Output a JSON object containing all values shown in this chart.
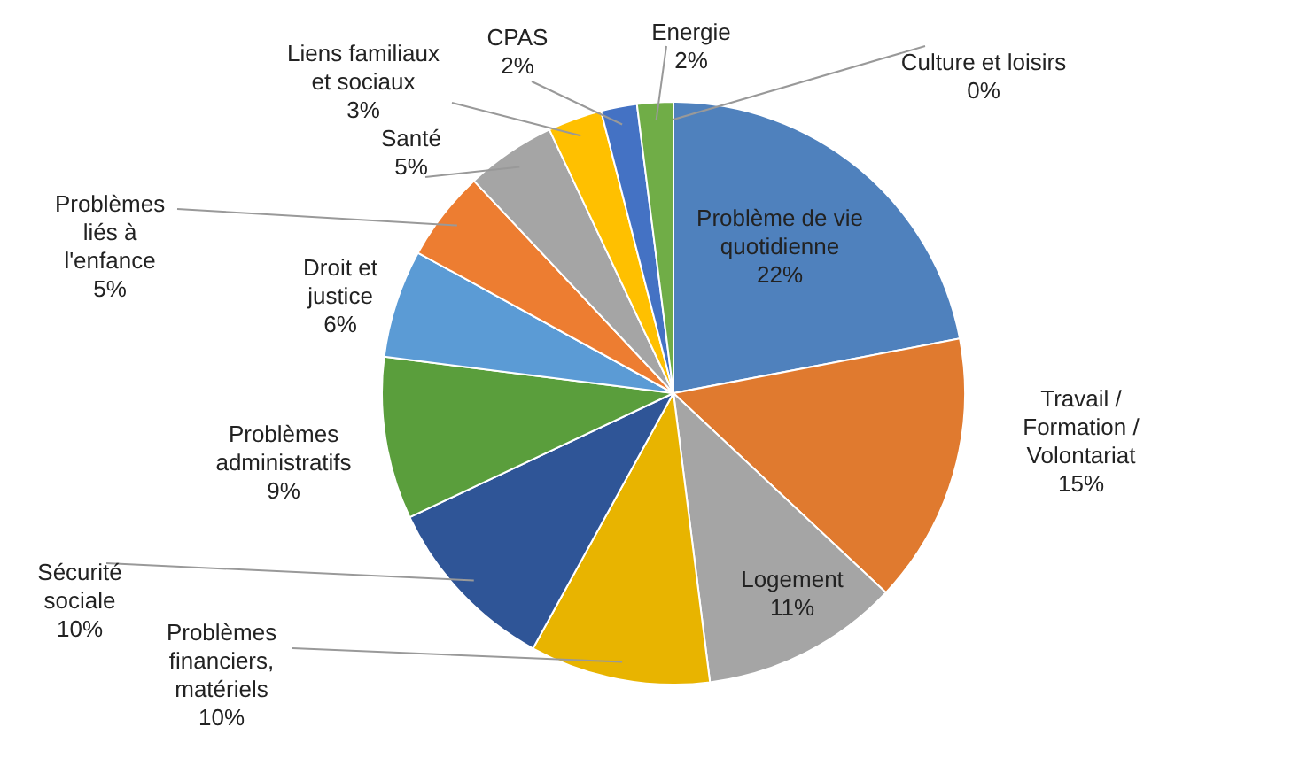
{
  "chart_data": {
    "type": "pie",
    "legend": false,
    "categories": [
      "Problème de vie quotidienne",
      "Travail / Formation / Volontariat",
      "Logement",
      "Problèmes financiers, matériels",
      "Sécurité sociale",
      "Problèmes administratifs",
      "Droit et justice",
      "Problèmes liés à l'enfance",
      "Santé",
      "Liens familiaux et sociaux",
      "CPAS",
      "Energie",
      "Culture et loisirs"
    ],
    "values": [
      22,
      15,
      11,
      10,
      10,
      9,
      6,
      5,
      5,
      3,
      2,
      2,
      0
    ],
    "value_labels": [
      "22%",
      "15%",
      "11%",
      "10%",
      "10%",
      "9%",
      "6%",
      "5%",
      "5%",
      "3%",
      "2%",
      "2%",
      "0%"
    ],
    "colors": [
      "#4f81bd",
      "#e07a2f",
      "#a5a5a5",
      "#e8b400",
      "#2f5597",
      "#5a9e3c",
      "#5b9bd5",
      "#ed7d31",
      "#a5a5a5",
      "#ffc000",
      "#4472c4",
      "#70ad47",
      "#9dc3e6"
    ]
  }
}
